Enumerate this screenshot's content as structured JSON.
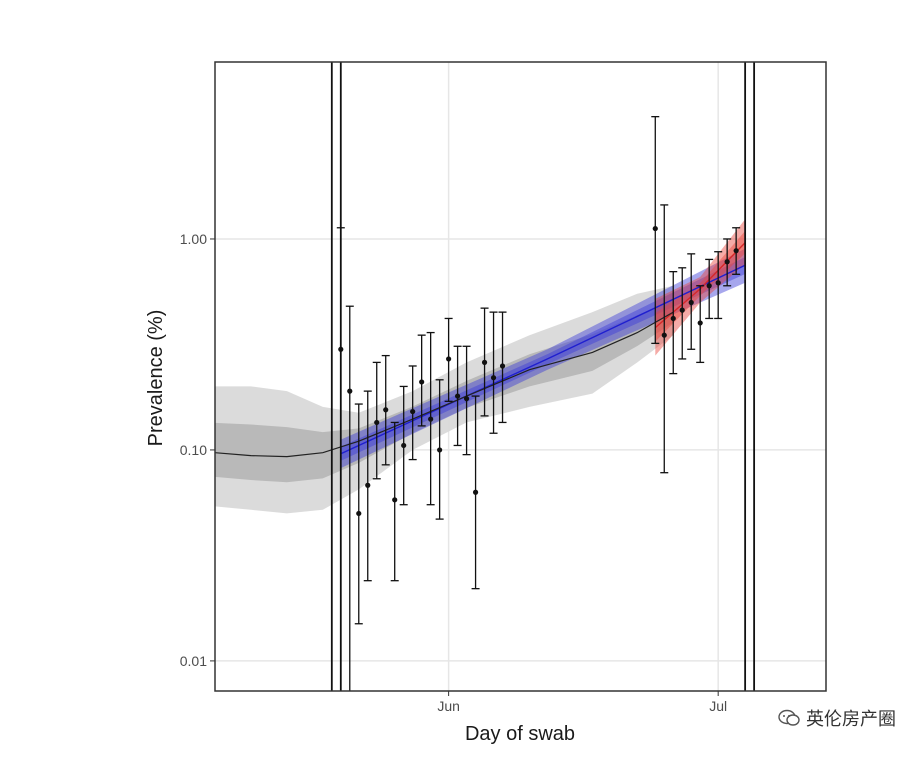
{
  "chart_data": {
    "type": "scatter",
    "xlabel": "Day of swab",
    "ylabel": "Prevalence (%)",
    "x_axis": {
      "type": "date",
      "range": [
        "2021-05-06",
        "2021-07-13"
      ],
      "ticks": [
        {
          "date": "2021-06-01",
          "label": "Jun"
        },
        {
          "date": "2021-07-01",
          "label": "Jul"
        }
      ]
    },
    "y_axis": {
      "scale": "log",
      "range": [
        0.0072,
        6.9
      ],
      "ticks": [
        {
          "value": 0.01,
          "label": "0.01"
        },
        {
          "value": 0.1,
          "label": "0.10"
        },
        {
          "value": 1.0,
          "label": "1.00"
        }
      ]
    },
    "grid": true,
    "vertical_lines": [
      "2021-05-19",
      "2021-05-20",
      "2021-07-04",
      "2021-07-05"
    ],
    "points": [
      {
        "x": "2021-05-20",
        "y": 0.3,
        "lo": 0.007,
        "hi": 1.13
      },
      {
        "x": "2021-05-21",
        "y": 0.19,
        "lo": 0.007,
        "hi": 0.48
      },
      {
        "x": "2021-05-22",
        "y": 0.05,
        "lo": 0.015,
        "hi": 0.165
      },
      {
        "x": "2021-05-23",
        "y": 0.068,
        "lo": 0.024,
        "hi": 0.19
      },
      {
        "x": "2021-05-24",
        "y": 0.135,
        "lo": 0.073,
        "hi": 0.26
      },
      {
        "x": "2021-05-25",
        "y": 0.155,
        "lo": 0.085,
        "hi": 0.28
      },
      {
        "x": "2021-05-26",
        "y": 0.058,
        "lo": 0.024,
        "hi": 0.135
      },
      {
        "x": "2021-05-27",
        "y": 0.105,
        "lo": 0.055,
        "hi": 0.2
      },
      {
        "x": "2021-05-28",
        "y": 0.152,
        "lo": 0.09,
        "hi": 0.25
      },
      {
        "x": "2021-05-29",
        "y": 0.21,
        "lo": 0.13,
        "hi": 0.35
      },
      {
        "x": "2021-05-30",
        "y": 0.14,
        "lo": 0.055,
        "hi": 0.36
      },
      {
        "x": "2021-05-31",
        "y": 0.1,
        "lo": 0.047,
        "hi": 0.215
      },
      {
        "x": "2021-06-01",
        "y": 0.27,
        "lo": 0.17,
        "hi": 0.42
      },
      {
        "x": "2021-06-02",
        "y": 0.18,
        "lo": 0.105,
        "hi": 0.31
      },
      {
        "x": "2021-06-03",
        "y": 0.175,
        "lo": 0.095,
        "hi": 0.31
      },
      {
        "x": "2021-06-04",
        "y": 0.063,
        "lo": 0.022,
        "hi": 0.18
      },
      {
        "x": "2021-06-05",
        "y": 0.26,
        "lo": 0.145,
        "hi": 0.47
      },
      {
        "x": "2021-06-06",
        "y": 0.22,
        "lo": 0.12,
        "hi": 0.45
      },
      {
        "x": "2021-06-07",
        "y": 0.25,
        "lo": 0.135,
        "hi": 0.45
      },
      {
        "x": "2021-06-24",
        "y": 1.12,
        "lo": 0.32,
        "hi": 3.8
      },
      {
        "x": "2021-06-25",
        "y": 0.35,
        "lo": 0.078,
        "hi": 1.45
      },
      {
        "x": "2021-06-26",
        "y": 0.42,
        "lo": 0.23,
        "hi": 0.7
      },
      {
        "x": "2021-06-27",
        "y": 0.46,
        "lo": 0.27,
        "hi": 0.73
      },
      {
        "x": "2021-06-28",
        "y": 0.5,
        "lo": 0.3,
        "hi": 0.85
      },
      {
        "x": "2021-06-29",
        "y": 0.4,
        "lo": 0.26,
        "hi": 0.6
      },
      {
        "x": "2021-06-30",
        "y": 0.6,
        "lo": 0.42,
        "hi": 0.8
      },
      {
        "x": "2021-07-01",
        "y": 0.62,
        "lo": 0.42,
        "hi": 0.87
      },
      {
        "x": "2021-07-02",
        "y": 0.78,
        "lo": 0.6,
        "hi": 1.0
      },
      {
        "x": "2021-07-03",
        "y": 0.88,
        "lo": 0.68,
        "hi": 1.13
      }
    ],
    "smooth_fit": [
      {
        "x": "2021-05-06",
        "y": 0.097,
        "lo": 0.054,
        "hi": 0.2
      },
      {
        "x": "2021-05-10",
        "y": 0.094,
        "lo": 0.052,
        "hi": 0.2
      },
      {
        "x": "2021-05-14",
        "y": 0.093,
        "lo": 0.05,
        "hi": 0.19
      },
      {
        "x": "2021-05-18",
        "y": 0.097,
        "lo": 0.052,
        "hi": 0.16
      },
      {
        "x": "2021-05-22",
        "y": 0.11,
        "lo": 0.065,
        "hi": 0.15
      },
      {
        "x": "2021-05-28",
        "y": 0.14,
        "lo": 0.1,
        "hi": 0.19
      },
      {
        "x": "2021-06-03",
        "y": 0.18,
        "lo": 0.135,
        "hi": 0.26
      },
      {
        "x": "2021-06-10",
        "y": 0.24,
        "lo": 0.16,
        "hi": 0.35
      },
      {
        "x": "2021-06-17",
        "y": 0.29,
        "lo": 0.185,
        "hi": 0.45
      },
      {
        "x": "2021-06-22",
        "y": 0.36,
        "lo": 0.26,
        "hi": 0.55
      },
      {
        "x": "2021-06-26",
        "y": 0.45,
        "lo": 0.35,
        "hi": 0.6
      }
    ],
    "linear_fit_blue": {
      "from": {
        "x": "2021-05-20",
        "y": 0.096,
        "lo": 0.082,
        "hi": 0.112
      },
      "mid": {
        "x": "2021-06-12",
        "y": 0.27,
        "lo": 0.24,
        "hi": 0.3
      },
      "to": {
        "x": "2021-07-04",
        "y": 0.75,
        "lo": 0.62,
        "hi": 0.9
      }
    },
    "linear_fit_red": {
      "from": {
        "x": "2021-06-24",
        "y": 0.38,
        "lo": 0.28,
        "hi": 0.52
      },
      "mid": {
        "x": "2021-06-29",
        "y": 0.58,
        "lo": 0.5,
        "hi": 0.66
      },
      "to": {
        "x": "2021-07-04",
        "y": 0.96,
        "lo": 0.76,
        "hi": 1.24
      }
    },
    "colors": {
      "points": "#111111",
      "smooth_line": "#222222",
      "smooth_band_outer": "#d9d9d9",
      "smooth_band_inner": "#b5b5b5",
      "blue_line": "#1f1fcf",
      "blue_band": "#3b3bd8",
      "red_line": "#d62728",
      "red_band": "#e8453c",
      "grid": "#e6e6e6",
      "panel_border": "#333333"
    }
  },
  "watermark": {
    "text": "英伦房产圈",
    "icon": "wechat-bubble-icon"
  }
}
